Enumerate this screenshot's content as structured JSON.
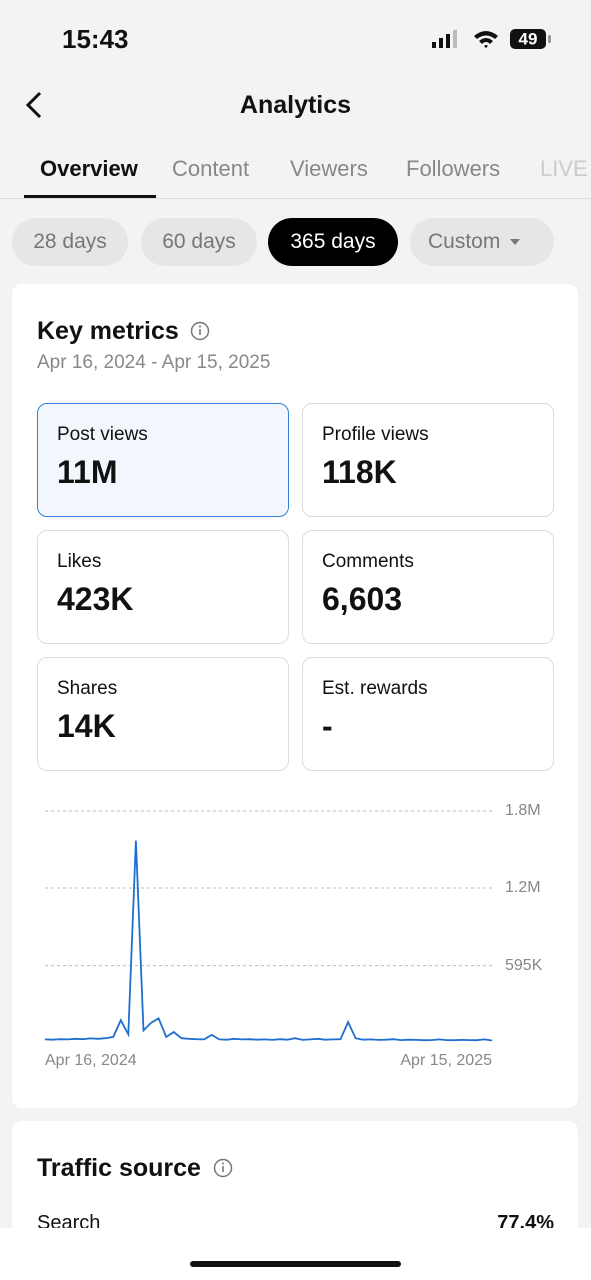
{
  "status_bar": {
    "time": "15:43",
    "battery": "49"
  },
  "header": {
    "title": "Analytics"
  },
  "tabs": [
    "Overview",
    "Content",
    "Viewers",
    "Followers",
    "LIVE"
  ],
  "ranges": [
    "28 days",
    "60 days",
    "365 days",
    "Custom"
  ],
  "key_metrics": {
    "title": "Key metrics",
    "date_range": "Apr 16, 2024 - Apr 15, 2025",
    "cards": [
      {
        "label": "Post views",
        "value": "11M"
      },
      {
        "label": "Profile views",
        "value": "118K"
      },
      {
        "label": "Likes",
        "value": "423K"
      },
      {
        "label": "Comments",
        "value": "6,603"
      },
      {
        "label": "Shares",
        "value": "14K"
      },
      {
        "label": "Est. rewards",
        "value": "-"
      }
    ]
  },
  "chart_data": {
    "type": "line",
    "color": "#1f6fd1",
    "categories": [
      "Apr 16, 2024",
      null,
      null,
      null,
      null,
      null,
      null,
      null,
      null,
      null,
      null,
      null,
      null,
      null,
      null,
      null,
      null,
      null,
      null,
      null,
      null,
      null,
      null,
      null,
      null,
      null,
      null,
      null,
      null,
      null,
      null,
      null,
      null,
      null,
      null,
      null,
      null,
      null,
      null,
      null,
      null,
      null,
      null,
      null,
      null,
      null,
      null,
      null,
      null,
      null,
      null,
      null,
      null,
      null,
      null,
      null,
      null,
      null,
      null,
      "Apr 15, 2025"
    ],
    "values": [
      20000,
      18000,
      22000,
      20000,
      25000,
      22000,
      28000,
      25000,
      30000,
      40000,
      170000,
      60000,
      1570000,
      90000,
      150000,
      185000,
      40000,
      78000,
      30000,
      25000,
      22000,
      20000,
      55000,
      20000,
      18000,
      25000,
      20000,
      22000,
      18000,
      20000,
      16000,
      22000,
      18000,
      30000,
      16000,
      20000,
      25000,
      18000,
      20000,
      22000,
      155000,
      30000,
      18000,
      20000,
      16000,
      18000,
      22000,
      15000,
      18000,
      16000,
      14000,
      15000,
      20000,
      15000,
      14000,
      16000,
      15000,
      14000,
      20000,
      12000
    ],
    "ylim": [
      0,
      1800000
    ],
    "yticks": [
      {
        "value": 595000,
        "label": "595K"
      },
      {
        "value": 1200000,
        "label": "1.2M"
      },
      {
        "value": 1800000,
        "label": "1.8M"
      }
    ],
    "grid": true
  },
  "traffic_source": {
    "title": "Traffic source",
    "rows": [
      {
        "label": "Search",
        "value": "77.4%"
      }
    ]
  }
}
